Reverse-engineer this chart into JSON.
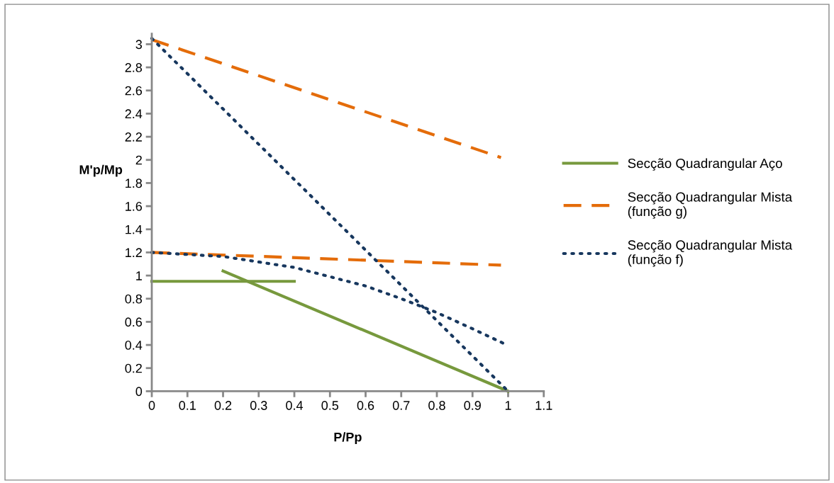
{
  "chart_data": {
    "type": "line",
    "xlabel": "P/Pp",
    "ylabel": "M'p/Mp",
    "xlim": [
      0,
      1.1
    ],
    "xticks": [
      0,
      0.1,
      0.2,
      0.3,
      0.4,
      0.5,
      0.6,
      0.7,
      0.8,
      0.9,
      1,
      1.1
    ],
    "ylim": [
      0,
      3.09
    ],
    "yticks": [
      0,
      0.2,
      0.4,
      0.6,
      0.8,
      1,
      1.2,
      1.4,
      1.6,
      1.8,
      2,
      2.2,
      2.4,
      2.6,
      2.8,
      3
    ],
    "grid": false,
    "legend": "right",
    "marker": "none",
    "series": [
      {
        "name": "Secção Quadrangular Aço",
        "color": "#77993d",
        "line_style": "solid",
        "x": [
          0.2,
          1
        ],
        "values": [
          1.04,
          0
        ]
      },
      {
        "color": "#77993d",
        "line_style": "solid",
        "x": [
          0,
          0.4
        ],
        "values": [
          0.95,
          0.95
        ]
      },
      {
        "name": "Secção Quadrangular Mista (função g)",
        "color": "#e46c0a",
        "line_style": "dashed",
        "x": [
          0,
          0.98
        ],
        "values": [
          1.2,
          1.09
        ]
      },
      {
        "color": "#e46c0a",
        "line_style": "dashed",
        "x": [
          0,
          0.98
        ],
        "values": [
          3.04,
          2.02
        ]
      },
      {
        "name": "Secção Quadrangular Mista (função f)",
        "color": "#17375e",
        "line_style": "dotted",
        "x": [
          0,
          0.2,
          0.4,
          0.5,
          0.6,
          0.7,
          0.8,
          0.9,
          0.99
        ],
        "values": [
          1.2,
          1.165,
          1.07,
          0.99,
          0.91,
          0.8,
          0.68,
          0.54,
          0.41
        ]
      },
      {
        "color": "#17375e",
        "line_style": "dotted",
        "x": [
          0,
          1
        ],
        "values": [
          3.05,
          0
        ]
      }
    ]
  }
}
